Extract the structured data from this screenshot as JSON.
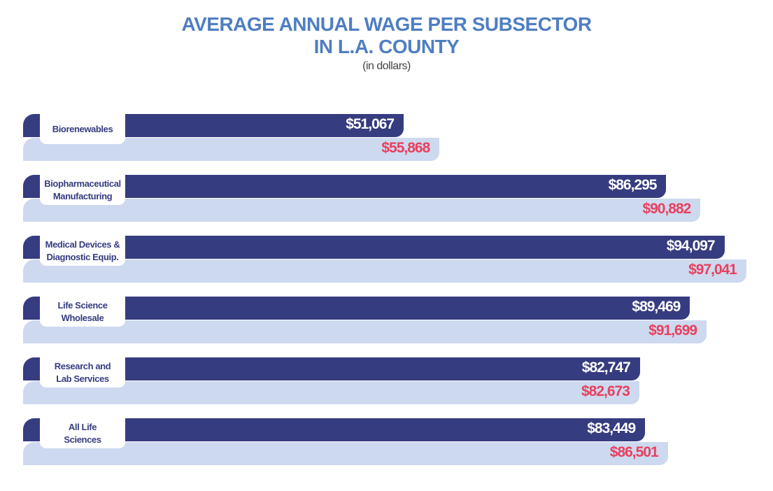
{
  "chart_data": {
    "type": "bar",
    "orientation": "horizontal",
    "title": [
      "AVERAGE ANNUAL WAGE PER SUBSECTOR",
      "IN L.A. COUNTY"
    ],
    "subtitle": "(in dollars)",
    "categories": [
      "Biorenewables",
      "Biopharmaceutical\nManufacturing",
      "Medical Devices &\nDiagnostic Equip.",
      "Life Science\nWholesale",
      "Research and\nLab Services",
      "All Life\nSciences"
    ],
    "series": [
      {
        "values": [
          51067,
          86295,
          94097,
          89469,
          82747,
          83449
        ],
        "labels": [
          "$51,067",
          "$86,295",
          "$94,097",
          "$89,469",
          "$82,747",
          "$83,449"
        ],
        "color": "#363c80",
        "label_color": "#ffffff"
      },
      {
        "values": [
          55868,
          90882,
          97041,
          91699,
          82673,
          86501
        ],
        "labels": [
          "$55,868",
          "$90,882",
          "$97,041",
          "$91,699",
          "$82,673",
          "$86,501"
        ],
        "color": "#cdd9ef",
        "label_color": "#e8405e"
      }
    ],
    "xlim": [
      0,
      97041
    ],
    "grid": false,
    "legend": "none"
  }
}
